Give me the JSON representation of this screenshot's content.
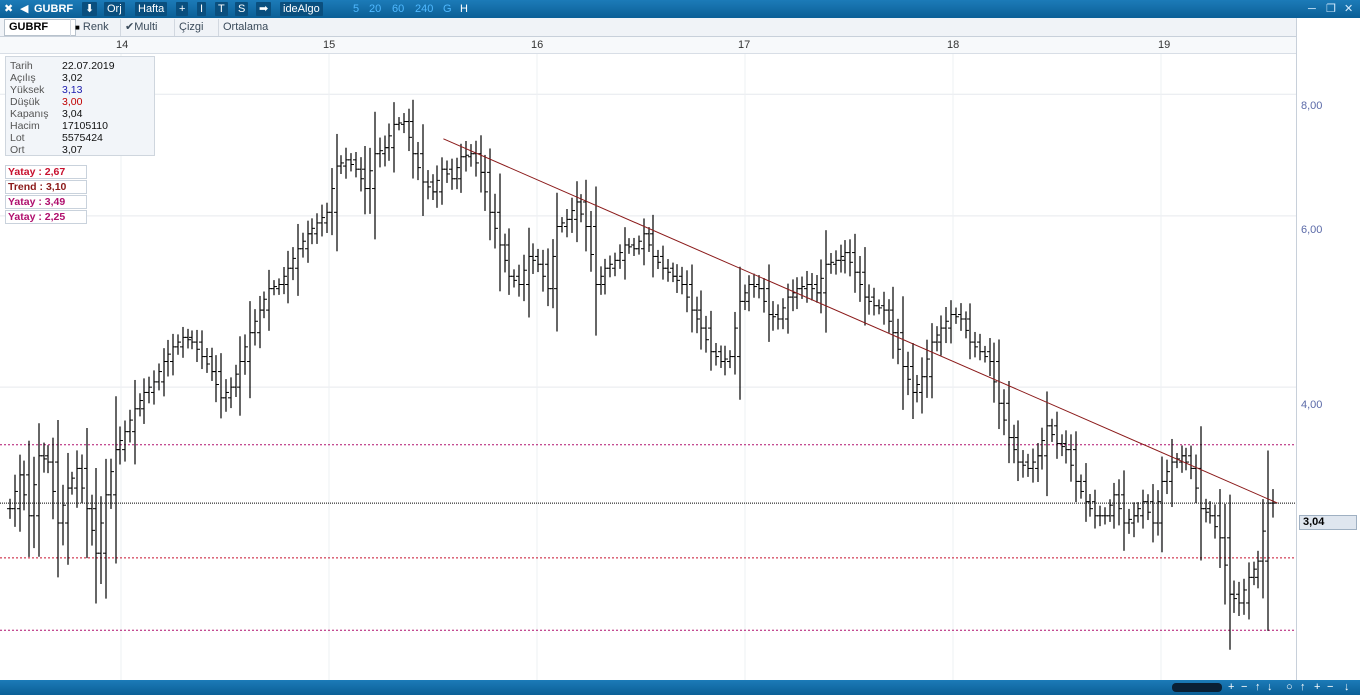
{
  "titlebar": {
    "close_glyph": "✖",
    "back_glyph": "◀",
    "symbol": "GUBRF",
    "download_glyph": "⬇",
    "orj": "Orj",
    "hafta": "Hafta",
    "plus": "+",
    "i_btn": "I",
    "t_btn": "T",
    "s_btn": "S",
    "arrow_glyph": "➡",
    "brand": "ideAlgo",
    "periods": [
      "5",
      "20",
      "60",
      "240",
      "G",
      "H"
    ],
    "minimize": "─",
    "restore": "❐",
    "close": "✕"
  },
  "toolbar": {
    "symbol": "GUBRF",
    "renk": "Renk",
    "multi": "Multi",
    "cizgi": "Çizgi",
    "ortalama": "Ortalama"
  },
  "xaxis": [
    "14",
    "15",
    "16",
    "17",
    "18",
    "19"
  ],
  "yaxis": [
    "8,00",
    "6,00",
    "4,00"
  ],
  "current_price": "3,04",
  "infobox": {
    "rows": [
      {
        "k": "Tarih",
        "v": "22.07.2019"
      },
      {
        "k": "Açılış",
        "v": "3,02"
      },
      {
        "k": "Yüksek",
        "v": "3,13"
      },
      {
        "k": "Düşük",
        "v": "3,00"
      },
      {
        "k": "Kapanış",
        "v": "3,04"
      },
      {
        "k": "Hacim",
        "v": "17105110"
      },
      {
        "k": "Lot",
        "v": "5575424"
      },
      {
        "k": "Ort",
        "v": "3,07"
      }
    ]
  },
  "levels": [
    {
      "label": "Yatay",
      "sep": ":",
      "value": "2,67",
      "color": "#c8102e"
    },
    {
      "label": "Trend",
      "sep": ":",
      "value": "3,10",
      "color": "#8b1a1a"
    },
    {
      "label": "Yatay",
      "sep": ":",
      "value": "3,49",
      "color": "#b0106e"
    },
    {
      "label": "Yatay",
      "sep": ":",
      "value": "2,25",
      "color": "#b0106e"
    }
  ],
  "colors": {
    "frame": "#0b5f96",
    "bar": "#000000",
    "trendline": "#8b1a1a",
    "yatay_red": "#c8102e",
    "yatay_purple": "#b0106e",
    "price_line": "#000000"
  },
  "chart_data": {
    "type": "ohlc",
    "periods": [
      "14",
      "15",
      "16",
      "17",
      "18",
      "19"
    ],
    "close_series": [
      3.0,
      3.25,
      2.95,
      3.4,
      3.35,
      2.9,
      3.15,
      3.3,
      3.0,
      2.7,
      3.1,
      3.45,
      3.6,
      3.8,
      3.95,
      4.05,
      4.25,
      4.4,
      4.5,
      4.45,
      4.3,
      4.15,
      3.9,
      4.0,
      4.25,
      4.55,
      4.8,
      5.05,
      5.1,
      5.3,
      5.55,
      5.75,
      5.9,
      6.05,
      6.75,
      6.85,
      6.7,
      6.4,
      6.95,
      7.05,
      7.45,
      7.5,
      6.95,
      6.5,
      6.35,
      6.7,
      6.55,
      6.9,
      6.95,
      6.65,
      6.05,
      5.6,
      5.2,
      5.1,
      5.45,
      5.35,
      5.05,
      5.85,
      5.95,
      6.2,
      5.85,
      5.1,
      5.3,
      5.4,
      5.6,
      5.55,
      5.75,
      5.45,
      5.3,
      5.2,
      5.1,
      4.8,
      4.6,
      4.35,
      4.25,
      4.3,
      4.9,
      5.1,
      5.05,
      4.75,
      4.7,
      4.95,
      5.05,
      5.1,
      5.0,
      5.35,
      5.4,
      5.5,
      5.25,
      4.95,
      4.85,
      4.8,
      4.55,
      4.2,
      3.95,
      4.1,
      4.45,
      4.6,
      4.75,
      4.7,
      4.45,
      4.35,
      4.25,
      3.85,
      3.55,
      3.35,
      3.3,
      3.4,
      3.65,
      3.5,
      3.45,
      3.2,
      3.05,
      2.95,
      2.95,
      3.1,
      2.9,
      2.95,
      3.05,
      2.9,
      3.2,
      3.35,
      3.4,
      3.3,
      3.0,
      2.95,
      2.8,
      2.45,
      2.4,
      2.55,
      2.65,
      3.04
    ],
    "horizontal_levels": [
      2.67,
      3.1,
      3.49,
      2.25
    ],
    "last_price": 3.04,
    "trendline": {
      "from_period_index": 1.55,
      "from_price": 7.2,
      "to_period_index": 5.56,
      "to_price": 3.04
    },
    "ylim": [
      2.0,
      8.8
    ],
    "scale": "log",
    "grid": true
  }
}
